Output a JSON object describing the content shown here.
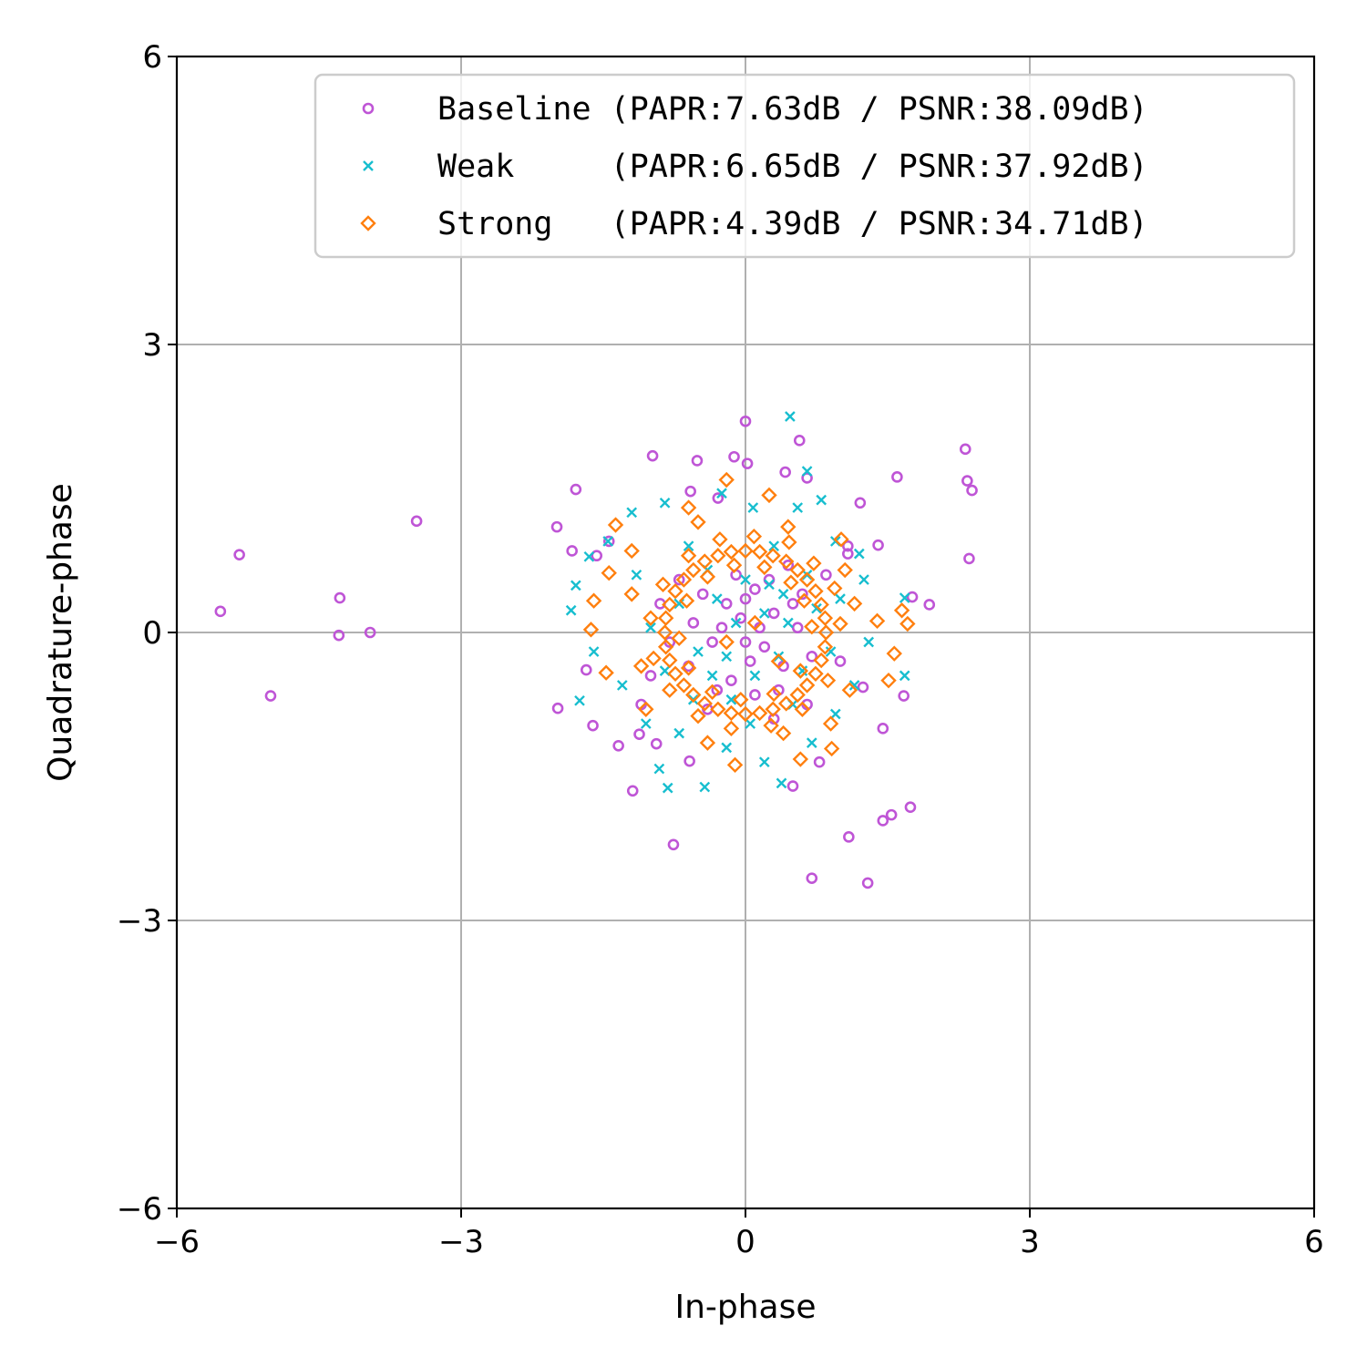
{
  "chart_data": {
    "type": "scatter",
    "title": "",
    "xlabel": "In-phase",
    "ylabel": "Quadrature-phase",
    "xlim": [
      -6,
      6
    ],
    "ylim": [
      -6,
      6
    ],
    "xticks": [
      "−6",
      "−3",
      "0",
      "3",
      "6"
    ],
    "yticks": [
      "−6",
      "−3",
      "0",
      "3",
      "6"
    ],
    "xtick_values": [
      -6,
      -3,
      0,
      3,
      6
    ],
    "ytick_values": [
      -6,
      -3,
      0,
      3,
      6
    ],
    "grid": true,
    "legend_placement": "upper-right",
    "series": [
      {
        "name": "Baseline",
        "label": "Baseline (PAPR:7.63dB / PSNR:38.09dB)",
        "color": "#bf55d6",
        "marker": "circle",
        "points": [
          [
            -5.54,
            0.22
          ],
          [
            -5.34,
            0.81
          ],
          [
            -5.01,
            -0.66
          ],
          [
            -4.28,
            0.36
          ],
          [
            -4.29,
            -0.03
          ],
          [
            -3.96,
            0.0
          ],
          [
            -3.47,
            1.16
          ],
          [
            0.0,
            2.2
          ],
          [
            0.57,
            2.0
          ],
          [
            -0.98,
            1.84
          ],
          [
            -1.79,
            1.49
          ],
          [
            -1.99,
            1.1
          ],
          [
            -1.83,
            0.85
          ],
          [
            -0.51,
            1.79
          ],
          [
            -0.12,
            1.83
          ],
          [
            0.02,
            1.76
          ],
          [
            0.42,
            1.67
          ],
          [
            0.65,
            1.61
          ],
          [
            1.21,
            1.35
          ],
          [
            1.6,
            1.62
          ],
          [
            2.32,
            1.91
          ],
          [
            2.34,
            1.58
          ],
          [
            2.39,
            1.48
          ],
          [
            2.36,
            0.77
          ],
          [
            1.4,
            0.91
          ],
          [
            1.94,
            0.29
          ],
          [
            1.76,
            0.37
          ],
          [
            -1.98,
            -0.79
          ],
          [
            -1.61,
            -0.97
          ],
          [
            -1.34,
            -1.18
          ],
          [
            -1.19,
            -1.65
          ],
          [
            -0.76,
            -2.21
          ],
          [
            0.5,
            -1.6
          ],
          [
            0.7,
            -2.56
          ],
          [
            1.29,
            -2.61
          ],
          [
            1.09,
            -2.13
          ],
          [
            1.45,
            -1.96
          ],
          [
            1.54,
            -1.9
          ],
          [
            1.74,
            -1.82
          ],
          [
            1.45,
            -1.0
          ],
          [
            1.67,
            -0.66
          ],
          [
            1.24,
            -0.57
          ],
          [
            -1.68,
            -0.39
          ],
          [
            -0.94,
            -1.16
          ],
          [
            -0.59,
            -1.34
          ],
          [
            -1.44,
            0.95
          ],
          [
            -1.57,
            0.8
          ],
          [
            -0.29,
            1.4
          ],
          [
            -0.58,
            1.47
          ],
          [
            1.08,
            0.9
          ],
          [
            1.08,
            0.82
          ],
          [
            -1.1,
            -0.75
          ],
          [
            -1.12,
            -1.06
          ],
          [
            0.78,
            -1.35
          ],
          [
            -0.2,
            0.3
          ],
          [
            0.1,
            0.45
          ],
          [
            0.3,
            0.2
          ],
          [
            -0.35,
            -0.1
          ],
          [
            0.05,
            -0.3
          ],
          [
            0.4,
            -0.35
          ],
          [
            -0.15,
            -0.5
          ],
          [
            0.25,
            0.55
          ],
          [
            -0.45,
            0.4
          ],
          [
            0.55,
            0.05
          ],
          [
            -0.6,
            -0.35
          ],
          [
            0.15,
            0.05
          ],
          [
            -0.05,
            0.15
          ],
          [
            0.35,
            -0.6
          ],
          [
            -0.3,
            -0.6
          ],
          [
            0.6,
            0.4
          ],
          [
            -0.55,
            0.1
          ],
          [
            0.0,
            -0.1
          ],
          [
            0.2,
            -0.15
          ],
          [
            -0.1,
            0.6
          ],
          [
            0.45,
            0.7
          ],
          [
            -0.7,
            0.55
          ],
          [
            0.7,
            -0.25
          ],
          [
            -0.25,
            0.05
          ],
          [
            0.1,
            -0.65
          ],
          [
            0.5,
            0.3
          ],
          [
            -0.4,
            -0.8
          ],
          [
            0.3,
            -0.9
          ],
          [
            -0.8,
            -0.1
          ],
          [
            0.85,
            0.6
          ],
          [
            -0.9,
            0.3
          ],
          [
            0.0,
            0.35
          ],
          [
            1.0,
            -0.3
          ],
          [
            -1.0,
            -0.45
          ],
          [
            0.65,
            -0.75
          ]
        ]
      },
      {
        "name": "Weak",
        "label": "Weak     (PAPR:6.65dB / PSNR:37.92dB)",
        "color": "#17becf",
        "marker": "x",
        "points": [
          [
            0.47,
            2.25
          ],
          [
            0.65,
            1.68
          ],
          [
            0.8,
            1.38
          ],
          [
            1.68,
            0.36
          ],
          [
            1.68,
            -0.45
          ],
          [
            -0.91,
            -1.42
          ],
          [
            -0.82,
            -1.62
          ],
          [
            -0.43,
            -1.61
          ],
          [
            0.38,
            -1.57
          ],
          [
            -1.75,
            -0.71
          ],
          [
            -1.84,
            0.23
          ],
          [
            -1.79,
            0.49
          ],
          [
            -1.65,
            0.79
          ],
          [
            -0.25,
            1.45
          ],
          [
            0.08,
            1.3
          ],
          [
            0.55,
            1.3
          ],
          [
            -0.85,
            1.35
          ],
          [
            -1.2,
            1.25
          ],
          [
            -1.45,
            0.95
          ],
          [
            1.25,
            0.55
          ],
          [
            1.2,
            0.82
          ],
          [
            -1.6,
            -0.2
          ],
          [
            -1.3,
            -0.55
          ],
          [
            1.3,
            -0.1
          ],
          [
            1.15,
            -0.55
          ],
          [
            0.95,
            -0.85
          ],
          [
            0.7,
            -1.15
          ],
          [
            -0.7,
            -1.05
          ],
          [
            -1.05,
            -0.95
          ],
          [
            -0.2,
            -1.2
          ],
          [
            0.2,
            -1.35
          ],
          [
            -1.15,
            0.6
          ],
          [
            0.95,
            0.95
          ],
          [
            -0.6,
            0.9
          ],
          [
            0.3,
            0.9
          ],
          [
            -0.3,
            0.35
          ],
          [
            0.25,
            0.5
          ],
          [
            0.45,
            0.1
          ],
          [
            -0.5,
            -0.2
          ],
          [
            0.1,
            -0.45
          ],
          [
            -0.15,
            -0.7
          ],
          [
            0.6,
            -0.4
          ],
          [
            -0.7,
            0.3
          ],
          [
            0.2,
            0.2
          ],
          [
            -0.1,
            0.1
          ],
          [
            0.35,
            -0.25
          ],
          [
            -0.35,
            -0.45
          ],
          [
            0.0,
            0.55
          ],
          [
            0.75,
            0.25
          ],
          [
            -0.85,
            -0.4
          ],
          [
            0.5,
            -0.75
          ],
          [
            -0.4,
            0.65
          ],
          [
            0.05,
            -0.95
          ],
          [
            0.9,
            -0.2
          ],
          [
            -1.0,
            0.05
          ],
          [
            0.65,
            0.6
          ],
          [
            -0.2,
            -0.25
          ],
          [
            0.4,
            0.4
          ],
          [
            -0.55,
            -0.7
          ],
          [
            1.0,
            0.35
          ]
        ]
      },
      {
        "name": "Strong",
        "label": "Strong   (PAPR:4.39dB / PSNR:34.71dB)",
        "color": "#ff7f0e",
        "marker": "diamond",
        "points": [
          [
            -0.2,
            1.59
          ],
          [
            0.25,
            1.43
          ],
          [
            -1.6,
            0.33
          ],
          [
            -1.63,
            0.03
          ],
          [
            -1.47,
            -0.42
          ],
          [
            -0.11,
            -1.38
          ],
          [
            0.58,
            -1.32
          ],
          [
            0.91,
            -1.21
          ],
          [
            1.51,
            -0.5
          ],
          [
            1.57,
            -0.22
          ],
          [
            1.71,
            0.09
          ],
          [
            1.65,
            0.23
          ],
          [
            1.39,
            0.12
          ],
          [
            -1.37,
            1.12
          ],
          [
            -0.6,
            1.3
          ],
          [
            1.01,
            0.97
          ],
          [
            -1.44,
            0.62
          ],
          [
            0.85,
            0.0
          ],
          [
            0.84,
            0.15
          ],
          [
            0.8,
            0.29
          ],
          [
            0.74,
            0.43
          ],
          [
            0.65,
            0.55
          ],
          [
            0.55,
            0.65
          ],
          [
            0.43,
            0.74
          ],
          [
            0.29,
            0.8
          ],
          [
            0.15,
            0.84
          ],
          [
            0.0,
            0.85
          ],
          [
            -0.15,
            0.84
          ],
          [
            -0.29,
            0.8
          ],
          [
            -0.43,
            0.74
          ],
          [
            -0.55,
            0.65
          ],
          [
            -0.65,
            0.55
          ],
          [
            -0.74,
            0.43
          ],
          [
            -0.8,
            0.29
          ],
          [
            -0.84,
            0.15
          ],
          [
            -0.85,
            0.0
          ],
          [
            -0.84,
            -0.15
          ],
          [
            -0.8,
            -0.29
          ],
          [
            -0.74,
            -0.43
          ],
          [
            -0.65,
            -0.55
          ],
          [
            -0.55,
            -0.65
          ],
          [
            -0.43,
            -0.74
          ],
          [
            -0.29,
            -0.8
          ],
          [
            -0.15,
            -0.84
          ],
          [
            0.0,
            -0.85
          ],
          [
            0.15,
            -0.84
          ],
          [
            0.29,
            -0.8
          ],
          [
            0.43,
            -0.74
          ],
          [
            0.55,
            -0.65
          ],
          [
            0.65,
            -0.55
          ],
          [
            0.74,
            -0.43
          ],
          [
            0.8,
            -0.29
          ],
          [
            0.84,
            -0.15
          ],
          [
            1.0,
            0.09
          ],
          [
            0.94,
            0.46
          ],
          [
            0.72,
            0.72
          ],
          [
            0.46,
            0.94
          ],
          [
            0.09,
            1.0
          ],
          [
            -0.27,
            0.97
          ],
          [
            -0.6,
            0.8
          ],
          [
            -0.87,
            0.5
          ],
          [
            -1.0,
            0.15
          ],
          [
            -0.97,
            -0.27
          ],
          [
            -0.8,
            -0.6
          ],
          [
            -0.5,
            -0.87
          ],
          [
            -0.15,
            -1.0
          ],
          [
            0.27,
            -0.97
          ],
          [
            0.6,
            -0.8
          ],
          [
            0.87,
            -0.5
          ],
          [
            0.7,
            0.06
          ],
          [
            0.62,
            0.33
          ],
          [
            0.48,
            0.52
          ],
          [
            0.2,
            0.68
          ],
          [
            -0.12,
            0.7
          ],
          [
            -0.4,
            0.58
          ],
          [
            -0.62,
            0.33
          ],
          [
            -0.7,
            -0.06
          ],
          [
            -0.6,
            -0.37
          ],
          [
            -0.35,
            -0.62
          ],
          [
            -0.05,
            -0.7
          ],
          [
            0.3,
            -0.64
          ],
          [
            0.58,
            -0.4
          ],
          [
            1.15,
            0.3
          ],
          [
            -1.2,
            0.4
          ],
          [
            -1.1,
            -0.35
          ],
          [
            1.1,
            -0.6
          ],
          [
            -0.5,
            1.15
          ],
          [
            0.45,
            1.1
          ],
          [
            -0.4,
            -1.15
          ],
          [
            0.4,
            -1.05
          ],
          [
            -1.2,
            0.85
          ],
          [
            1.05,
            0.65
          ],
          [
            -1.05,
            -0.8
          ],
          [
            0.9,
            -0.95
          ],
          [
            0.1,
            0.1
          ],
          [
            -0.2,
            -0.1
          ],
          [
            0.35,
            -0.3
          ]
        ]
      }
    ]
  }
}
